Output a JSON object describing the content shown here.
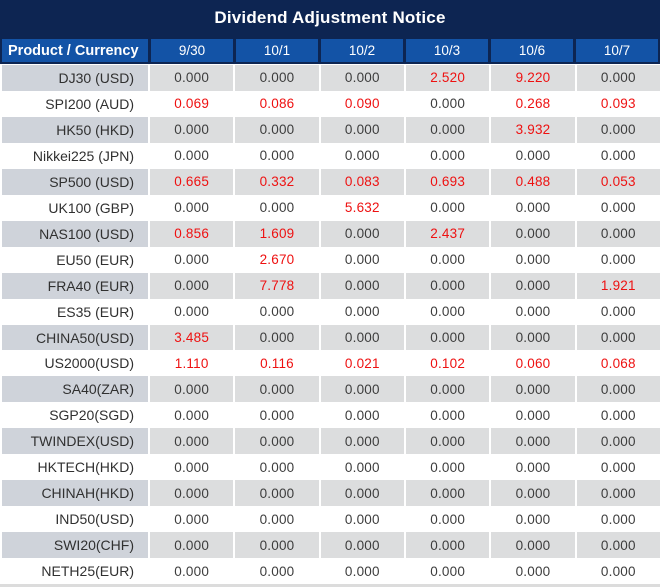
{
  "chart_data": {
    "type": "table",
    "title": "Dividend Adjustment Notice",
    "columns": [
      "Product / Currency",
      "9/30",
      "10/1",
      "10/2",
      "10/3",
      "10/6",
      "10/7"
    ],
    "rows": [
      {
        "product": "DJ30 (USD)",
        "values": [
          "0.000",
          "0.000",
          "0.000",
          "2.520",
          "9.220",
          "0.000"
        ]
      },
      {
        "product": "SPI200 (AUD)",
        "values": [
          "0.069",
          "0.086",
          "0.090",
          "0.000",
          "0.268",
          "0.093"
        ]
      },
      {
        "product": "HK50 (HKD)",
        "values": [
          "0.000",
          "0.000",
          "0.000",
          "0.000",
          "3.932",
          "0.000"
        ]
      },
      {
        "product": "Nikkei225 (JPN)",
        "values": [
          "0.000",
          "0.000",
          "0.000",
          "0.000",
          "0.000",
          "0.000"
        ]
      },
      {
        "product": "SP500 (USD)",
        "values": [
          "0.665",
          "0.332",
          "0.083",
          "0.693",
          "0.488",
          "0.053"
        ]
      },
      {
        "product": "UK100 (GBP)",
        "values": [
          "0.000",
          "0.000",
          "5.632",
          "0.000",
          "0.000",
          "0.000"
        ]
      },
      {
        "product": "NAS100 (USD)",
        "values": [
          "0.856",
          "1.609",
          "0.000",
          "2.437",
          "0.000",
          "0.000"
        ]
      },
      {
        "product": "EU50 (EUR)",
        "values": [
          "0.000",
          "2.670",
          "0.000",
          "0.000",
          "0.000",
          "0.000"
        ]
      },
      {
        "product": "FRA40 (EUR)",
        "values": [
          "0.000",
          "7.778",
          "0.000",
          "0.000",
          "0.000",
          "1.921"
        ]
      },
      {
        "product": "ES35 (EUR)",
        "values": [
          "0.000",
          "0.000",
          "0.000",
          "0.000",
          "0.000",
          "0.000"
        ]
      },
      {
        "product": "CHINA50(USD)",
        "values": [
          "3.485",
          "0.000",
          "0.000",
          "0.000",
          "0.000",
          "0.000"
        ]
      },
      {
        "product": "US2000(USD)",
        "values": [
          "1.110",
          "0.116",
          "0.021",
          "0.102",
          "0.060",
          "0.068"
        ]
      },
      {
        "product": "SA40(ZAR)",
        "values": [
          "0.000",
          "0.000",
          "0.000",
          "0.000",
          "0.000",
          "0.000"
        ]
      },
      {
        "product": "SGP20(SGD)",
        "values": [
          "0.000",
          "0.000",
          "0.000",
          "0.000",
          "0.000",
          "0.000"
        ]
      },
      {
        "product": "TWINDEX(USD)",
        "values": [
          "0.000",
          "0.000",
          "0.000",
          "0.000",
          "0.000",
          "0.000"
        ]
      },
      {
        "product": "HKTECH(HKD)",
        "values": [
          "0.000",
          "0.000",
          "0.000",
          "0.000",
          "0.000",
          "0.000"
        ]
      },
      {
        "product": "CHINAH(HKD)",
        "values": [
          "0.000",
          "0.000",
          "0.000",
          "0.000",
          "0.000",
          "0.000"
        ]
      },
      {
        "product": "IND50(USD)",
        "values": [
          "0.000",
          "0.000",
          "0.000",
          "0.000",
          "0.000",
          "0.000"
        ]
      },
      {
        "product": "SWI20(CHF)",
        "values": [
          "0.000",
          "0.000",
          "0.000",
          "0.000",
          "0.000",
          "0.000"
        ]
      },
      {
        "product": "NETH25(EUR)",
        "values": [
          "0.000",
          "0.000",
          "0.000",
          "0.000",
          "0.000",
          "0.000"
        ]
      }
    ],
    "layout": {
      "striped": true,
      "first_data_row_shaded": true,
      "value_style_rule": "non-zero values rendered in red, zero values in dark gray"
    }
  },
  "colors": {
    "title_bg": "#0d2552",
    "header_bg": "#1353a6",
    "header_text": "#ffffff",
    "stripe_product_bg": "#cfd3da",
    "stripe_value_bg": "#dcddde",
    "row_bg": "#ffffff",
    "value_text": "#3d3d3d",
    "nonzero_text": "#ee1111"
  }
}
